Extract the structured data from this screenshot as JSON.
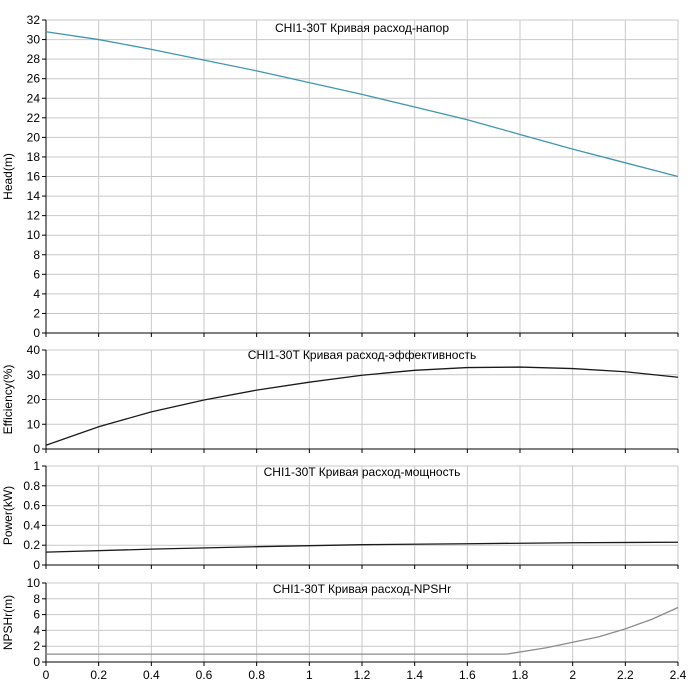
{
  "chart_data": [
    {
      "type": "line",
      "title": "CHI1-30T Кривая расход-напор",
      "xlabel": "",
      "ylabel": "Head(m)",
      "xlim": [
        0,
        2.4
      ],
      "ylim": [
        0,
        32
      ],
      "yticks": [
        0,
        2,
        4,
        6,
        8,
        10,
        12,
        14,
        16,
        18,
        20,
        22,
        24,
        26,
        28,
        30,
        32
      ],
      "grid": true,
      "series": [
        {
          "color": "#3f97ad",
          "x": [
            0,
            0.2,
            0.4,
            0.6,
            0.8,
            1.0,
            1.2,
            1.4,
            1.6,
            1.8,
            2.0,
            2.2,
            2.4
          ],
          "y": [
            30.8,
            30.0,
            29.0,
            27.9,
            26.8,
            25.6,
            24.4,
            23.1,
            21.8,
            20.3,
            18.8,
            17.4,
            16.0
          ]
        }
      ]
    },
    {
      "type": "line",
      "title": "CHI1-30T Кривая расход-эффективность",
      "xlabel": "",
      "ylabel": "Efficiency(%)",
      "xlim": [
        0,
        2.4
      ],
      "ylim": [
        0,
        40
      ],
      "yticks": [
        0,
        10,
        20,
        30,
        40
      ],
      "grid": true,
      "series": [
        {
          "color": "#1a1a1a",
          "x": [
            0,
            0.2,
            0.4,
            0.6,
            0.8,
            1.0,
            1.2,
            1.4,
            1.6,
            1.8,
            2.0,
            2.2,
            2.4
          ],
          "y": [
            1.5,
            9.0,
            15.0,
            19.8,
            23.8,
            27.0,
            29.8,
            31.8,
            32.9,
            33.1,
            32.5,
            31.2,
            29.0
          ]
        }
      ]
    },
    {
      "type": "line",
      "title": "CHI1-30T Кривая расход-мощность",
      "xlabel": "",
      "ylabel": "Power(kW)",
      "xlim": [
        0,
        2.4
      ],
      "ylim": [
        0,
        1
      ],
      "yticks": [
        0,
        0.2,
        0.4,
        0.6,
        0.8,
        1
      ],
      "grid": true,
      "series": [
        {
          "color": "#1a1a1a",
          "x": [
            0,
            0.4,
            0.8,
            1.2,
            1.6,
            2.0,
            2.4
          ],
          "y": [
            0.13,
            0.16,
            0.185,
            0.205,
            0.215,
            0.225,
            0.23
          ]
        }
      ]
    },
    {
      "type": "line",
      "title": "CHI1-30T Кривая расход-NPSHr",
      "xlabel": "",
      "ylabel": "NPSHr(m)",
      "xlim": [
        0,
        2.4
      ],
      "ylim": [
        0,
        10
      ],
      "yticks": [
        0,
        2,
        4,
        6,
        8,
        10
      ],
      "xticks": [
        0,
        0.2,
        0.4,
        0.6,
        0.8,
        1,
        1.2,
        1.4,
        1.6,
        1.8,
        2,
        2.2,
        2.4
      ],
      "grid": true,
      "series": [
        {
          "color": "#8c8c8c",
          "x": [
            0,
            0.4,
            0.8,
            1.2,
            1.6,
            1.75,
            1.9,
            2.0,
            2.1,
            2.2,
            2.3,
            2.4
          ],
          "y": [
            1.0,
            1.0,
            1.0,
            1.0,
            1.0,
            1.0,
            1.8,
            2.5,
            3.2,
            4.2,
            5.4,
            6.9
          ]
        }
      ]
    }
  ],
  "xticks_shared": [
    "0",
    "0.2",
    "0.4",
    "0.6",
    "0.8",
    "1",
    "1.2",
    "1.4",
    "1.6",
    "1.8",
    "2",
    "2.2",
    "2.4"
  ]
}
